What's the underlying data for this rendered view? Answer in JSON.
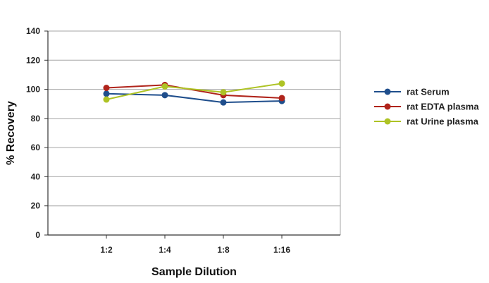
{
  "chart_data": {
    "type": "line",
    "categories": [
      "1:2",
      "1:4",
      "1:8",
      "1:16"
    ],
    "xlabel": "Sample Dilution",
    "ylabel": "% Recovery",
    "ylim": [
      0,
      140
    ],
    "yticks": [
      0,
      20,
      40,
      60,
      80,
      100,
      120,
      140
    ],
    "grid": true,
    "legend_position": "right",
    "series": [
      {
        "name": "rat Serum",
        "color": "#1f4e8c",
        "values": [
          97,
          96,
          91,
          92
        ]
      },
      {
        "name": "rat EDTA plasma",
        "color": "#b0241b",
        "values": [
          101,
          103,
          96,
          94
        ]
      },
      {
        "name": "rat Urine plasma",
        "color": "#aec325",
        "values": [
          93,
          102,
          98,
          104
        ]
      }
    ]
  }
}
